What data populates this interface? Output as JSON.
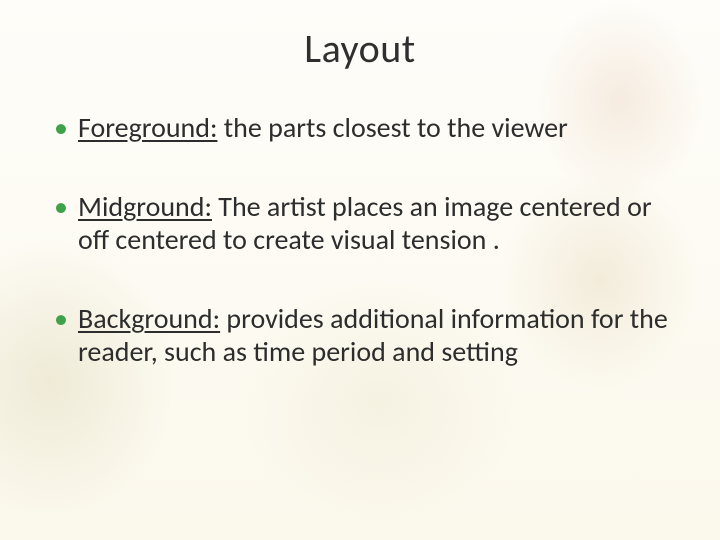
{
  "slide": {
    "title": "Layout",
    "title_color": "#2f2f2f",
    "title_fontsize": 40,
    "bullet_color": "#3fa24a",
    "body_color": "#2d2d2d",
    "body_fontsize": 28,
    "background_base": "#fdfcf7",
    "bullets": [
      {
        "term": "Foreground:",
        "rest": " the parts closest to the viewer"
      },
      {
        "term": "Midground:",
        "rest": " The artist places an image centered or off centered to create visual tension ."
      },
      {
        "term": "Background:",
        "rest": " provides additional information for the reader, such as time period and setting"
      }
    ]
  }
}
